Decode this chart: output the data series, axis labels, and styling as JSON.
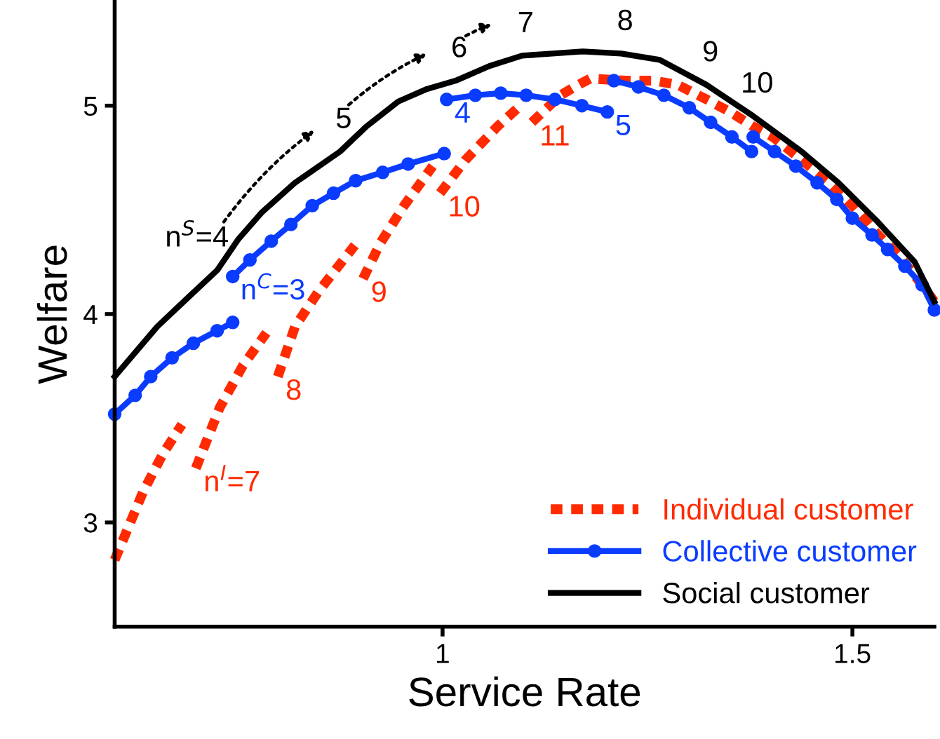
{
  "chart_data": {
    "type": "line",
    "xlabel": "Service Rate",
    "ylabel": "Welfare",
    "xlim": [
      0.6,
      1.6
    ],
    "ylim": [
      2.5,
      5.5
    ],
    "xticks": [
      1,
      1.5
    ],
    "yticks": [
      3,
      4,
      5
    ],
    "grid": false,
    "legend": "bottom right",
    "series": [
      {
        "name": "Individual customer",
        "color": "#ff2a00",
        "line_style": "dotted",
        "marker": "none",
        "x": [
          0.6,
          0.635,
          0.659,
          0.682,
          null,
          0.699,
          0.728,
          0.756,
          0.785,
          null,
          0.799,
          0.82,
          0.849,
          0.893,
          null,
          0.903,
          0.924,
          0.953,
          0.988,
          null,
          0.997,
          1.028,
          1.067,
          1.092,
          null,
          1.109,
          1.144,
          1.161,
          1.18,
          1.223,
          1.258,
          1.287,
          1.322,
          1.351,
          1.379,
          1.403,
          1.438,
          1.472,
          1.5,
          1.529,
          1.559,
          1.581,
          1.6
        ],
        "values": [
          2.82,
          3.15,
          3.33,
          3.47,
          null,
          3.26,
          3.55,
          3.75,
          3.91,
          null,
          3.7,
          3.94,
          4.11,
          4.33,
          null,
          4.17,
          4.34,
          4.52,
          4.71,
          null,
          4.58,
          4.74,
          4.9,
          4.99,
          null,
          4.92,
          5.05,
          5.09,
          5.13,
          5.12,
          5.12,
          5.1,
          5.03,
          4.97,
          4.9,
          4.85,
          4.74,
          4.63,
          4.52,
          4.39,
          4.27,
          4.16,
          4.06
        ]
      },
      {
        "name": "Collective customer",
        "color": "#0a3cff",
        "line_style": "solid",
        "marker": "circle",
        "x": [
          0.6,
          0.625,
          0.644,
          0.67,
          0.696,
          0.725,
          0.744,
          null,
          0.744,
          0.765,
          0.791,
          0.815,
          0.841,
          0.867,
          0.894,
          0.927,
          0.958,
          1.002,
          null,
          1.005,
          1.04,
          1.071,
          1.102,
          1.137,
          1.17,
          1.201,
          null,
          1.209,
          1.239,
          1.27,
          1.301,
          1.327,
          1.353,
          1.377,
          null,
          1.379,
          1.405,
          1.431,
          1.457,
          1.481,
          1.5,
          1.524,
          1.543,
          1.564,
          1.585,
          1.6
        ],
        "values": [
          3.52,
          3.61,
          3.7,
          3.79,
          3.86,
          3.92,
          3.96,
          null,
          4.18,
          4.26,
          4.35,
          4.43,
          4.52,
          4.58,
          4.64,
          4.68,
          4.72,
          4.77,
          null,
          5.03,
          5.05,
          5.06,
          5.05,
          5.03,
          5.0,
          4.97,
          null,
          5.12,
          5.09,
          5.05,
          4.99,
          4.92,
          4.85,
          4.78,
          null,
          4.85,
          4.78,
          4.71,
          4.63,
          4.55,
          4.46,
          4.38,
          4.31,
          4.23,
          4.14,
          4.02
        ]
      },
      {
        "name": "Social customer",
        "color": "#000000",
        "line_style": "solid",
        "marker": "none",
        "x": [
          0.6,
          0.652,
          0.687,
          0.725,
          0.751,
          0.78,
          0.82,
          0.875,
          0.907,
          0.946,
          0.981,
          1.016,
          1.057,
          1.097,
          1.171,
          1.218,
          1.265,
          1.322,
          1.379,
          1.438,
          1.483,
          1.529,
          1.576,
          1.6
        ],
        "values": [
          3.7,
          3.94,
          4.07,
          4.21,
          4.36,
          4.49,
          4.63,
          4.78,
          4.9,
          5.02,
          5.08,
          5.12,
          5.19,
          5.24,
          5.26,
          5.25,
          5.22,
          5.1,
          4.95,
          4.78,
          4.63,
          4.45,
          4.25,
          4.06
        ]
      }
    ],
    "annotations": [
      {
        "text": "n$^{I}$=7",
        "x": 0.699,
        "y": 3.26
      },
      {
        "text": "8",
        "x": 0.799,
        "y": 3.7
      },
      {
        "text": "9",
        "x": 0.903,
        "y": 4.17
      },
      {
        "text": "10",
        "x": 0.997,
        "y": 4.58
      },
      {
        "text": "11",
        "x": 1.109,
        "y": 4.92
      },
      {
        "text": "n$^{C}$=3",
        "x": 0.744,
        "y": 4.18
      },
      {
        "text": "4",
        "x": 1.005,
        "y": 5.03
      },
      {
        "text": "5",
        "x": 1.201,
        "y": 4.97
      },
      {
        "text": "n$^{S}$=4",
        "x": 0.725,
        "y": 4.21
      },
      {
        "text": "5",
        "x": 0.875,
        "y": 4.78
      },
      {
        "text": "6",
        "x": 1.016,
        "y": 5.12
      },
      {
        "text": "7",
        "x": 1.097,
        "y": 5.24
      },
      {
        "text": "8",
        "x": 1.218,
        "y": 5.25
      },
      {
        "text": "9",
        "x": 1.322,
        "y": 5.1
      },
      {
        "text": "10",
        "x": 1.379,
        "y": 4.95
      }
    ]
  }
}
